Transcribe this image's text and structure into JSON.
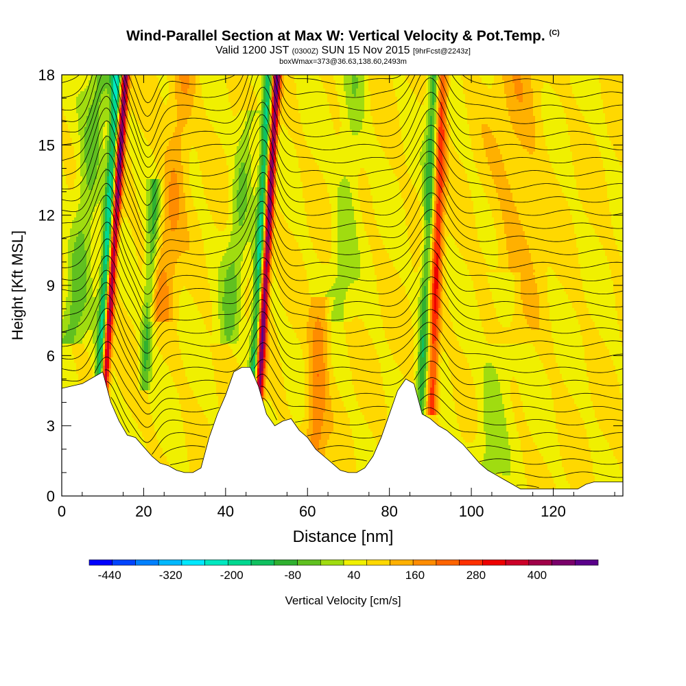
{
  "header": {
    "title": "Wind-Parallel Section at Max W: Vertical Velocity & Pot.Temp.",
    "copyright": "(C)",
    "valid_prefix": "Valid 1200 JST",
    "valid_utc": "(0300Z)",
    "valid_date": "SUN 15 Nov 2015",
    "forecast_info": "[9hrFcst@2243z]",
    "box_info": "boxWmax=373@36.63,138.60,2493m"
  },
  "chart_data": {
    "type": "heatmap",
    "xlabel": "Distance [nm]",
    "ylabel": "Height [Kft MSL]",
    "xlim": [
      0,
      137
    ],
    "ylim": [
      0,
      18
    ],
    "x_ticks": [
      0,
      20,
      40,
      60,
      80,
      100,
      120
    ],
    "y_ticks": [
      0,
      3,
      6,
      9,
      12,
      15,
      18
    ],
    "grid": false,
    "colorbar": {
      "label": "Vertical Velocity [cm/s]",
      "tick_labels": [
        "-440",
        "-320",
        "-200",
        "-80",
        "40",
        "160",
        "280",
        "400"
      ],
      "bounds": [
        -480,
        520
      ],
      "step": 40,
      "colors": [
        "#0000ff",
        "#0044ff",
        "#0080ff",
        "#00b8ff",
        "#00e8ff",
        "#00e8c0",
        "#00d890",
        "#10c060",
        "#30b030",
        "#60c020",
        "#a0dc10",
        "#f0f000",
        "#ffd800",
        "#ffb000",
        "#ff8c00",
        "#ff6400",
        "#ff3000",
        "#ee0000",
        "#cc0028",
        "#a00048",
        "#7a006a",
        "#5a008a"
      ]
    },
    "background_value": 0,
    "features": [
      {
        "name": "updraft",
        "x_base": 10.5,
        "y_base": 5.0,
        "x_top": 15.5,
        "y_top": 18,
        "width": 1.0,
        "peak": 380
      },
      {
        "name": "downdraft",
        "x_base": 9.5,
        "y_base": 5.0,
        "x_top": 13.5,
        "y_top": 18,
        "width": 1.3,
        "peak": -240
      },
      {
        "name": "updraft",
        "x_base": 48.5,
        "y_base": 5.5,
        "x_top": 52.5,
        "y_top": 18,
        "width": 1.0,
        "peak": 370
      },
      {
        "name": "downdraft",
        "x_base": 47.0,
        "y_base": 5.5,
        "x_top": 50.5,
        "y_top": 18,
        "width": 1.2,
        "peak": -200
      },
      {
        "name": "updraft",
        "x_base": 90.5,
        "y_base": 5.0,
        "x_top": 93.0,
        "y_top": 18,
        "width": 1.4,
        "peak": 200
      },
      {
        "name": "downdraft",
        "x_base": 88.0,
        "y_base": 4.5,
        "x_top": 91.0,
        "y_top": 18,
        "width": 1.4,
        "peak": -150
      },
      {
        "name": "downdraft",
        "x_base": 20.5,
        "y_base": 6.0,
        "x_top": 22.5,
        "y_top": 12,
        "width": 1.4,
        "peak": -120
      },
      {
        "name": "downdraft",
        "x_base": 3.0,
        "y_base": 8.0,
        "x_top": 9.0,
        "y_top": 17,
        "width": 3.0,
        "peak": -100
      },
      {
        "name": "downdraft",
        "x_base": 41.0,
        "y_base": 8.0,
        "x_top": 45.0,
        "y_top": 15,
        "width": 2.5,
        "peak": -80
      },
      {
        "name": "updraft",
        "x_base": 62.0,
        "y_base": 3.0,
        "x_top": 63.0,
        "y_top": 7.0,
        "width": 2.5,
        "peak": 110
      },
      {
        "name": "updraft",
        "x_base": 25.0,
        "y_base": 9.0,
        "x_top": 30.0,
        "y_top": 18,
        "width": 3.0,
        "peak": 80
      },
      {
        "name": "updraft",
        "x_base": 110.0,
        "y_base": 8.0,
        "x_top": 112.0,
        "y_top": 18,
        "width": 6.0,
        "peak": 50
      },
      {
        "name": "downdraft",
        "x_base": 104.0,
        "y_base": 2.0,
        "x_top": 108.0,
        "y_top": 8.0,
        "width": 4.0,
        "peak": -60
      },
      {
        "name": "downdraft",
        "x_base": 68.0,
        "y_base": 9.0,
        "x_top": 72.0,
        "y_top": 18,
        "width": 3.0,
        "peak": -60
      }
    ],
    "terrain": {
      "x": [
        0,
        5,
        8,
        10,
        12,
        14,
        16,
        18,
        20,
        22,
        24,
        26,
        28,
        30,
        32,
        34,
        36,
        38,
        40,
        42,
        44,
        46,
        48,
        50,
        52,
        54,
        56,
        58,
        60,
        62,
        64,
        66,
        68,
        70,
        72,
        74,
        76,
        78,
        80,
        82,
        84,
        86,
        88,
        90,
        92,
        94,
        96,
        98,
        100,
        102,
        104,
        106,
        108,
        110,
        112,
        114,
        116,
        118,
        120,
        122,
        124,
        126,
        128,
        130,
        132,
        134,
        137
      ],
      "height": [
        4.6,
        4.8,
        5.1,
        5.3,
        4.0,
        3.2,
        2.6,
        2.5,
        2.1,
        1.7,
        1.4,
        1.3,
        1.1,
        1.0,
        1.0,
        1.2,
        2.5,
        3.5,
        4.3,
        5.3,
        5.5,
        5.5,
        4.7,
        3.5,
        3.0,
        3.2,
        3.3,
        2.8,
        2.5,
        2.0,
        1.7,
        1.4,
        1.1,
        1.0,
        1.0,
        1.2,
        1.7,
        2.5,
        3.5,
        4.5,
        5.0,
        4.8,
        3.5,
        3.3,
        3.0,
        2.8,
        2.5,
        2.2,
        1.8,
        1.4,
        1.1,
        0.9,
        0.7,
        0.5,
        0.3,
        0.3,
        0.3,
        0.3,
        0.3,
        0.3,
        0.3,
        0.3,
        0.5,
        0.6,
        0.6,
        0.6,
        0.6
      ]
    },
    "isentropes": {
      "count": 33,
      "note": "potential temperature contours (black lines)",
      "perturbations": [
        {
          "x": 11,
          "amp": 1.4,
          "width": 4
        },
        {
          "x": 49,
          "amp": 1.3,
          "width": 4
        },
        {
          "x": 90,
          "amp": 1.1,
          "width": 5
        },
        {
          "x": 21,
          "amp": -0.7,
          "width": 3
        }
      ]
    }
  }
}
